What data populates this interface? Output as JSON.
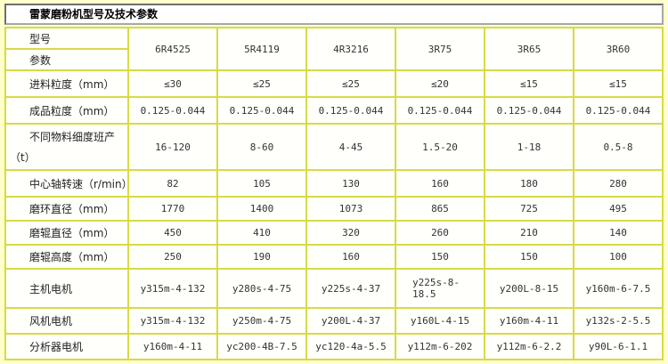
{
  "colors": {
    "page_bg": "#ffffcc",
    "cell_bg": "#fffffb",
    "grid": "#d8da45",
    "title_bg": "#ffffff",
    "title_border": "#6e6e6e",
    "text": "#333333"
  },
  "chart_data": {
    "type": "table",
    "title": "雷蒙磨粉机型号及技术参数",
    "corner": {
      "top": "型号",
      "bottom": "参数"
    },
    "columns": [
      "6R4525",
      "5R4119",
      "4R3216",
      "3R75",
      "3R65",
      "3R60"
    ],
    "rows": [
      {
        "label": "进料粒度（mm）",
        "values": [
          "≤30",
          "≤25",
          "≤25",
          "≤20",
          "≤15",
          "≤15"
        ]
      },
      {
        "label": "成品粒度（mm）",
        "values": [
          "0.125-0.044",
          "0.125-0.044",
          "0.125-0.044",
          "0.125-0.044",
          "0.125-0.044",
          "0.125-0.044"
        ]
      },
      {
        "label": "不同物料细度班产",
        "label2": "（t）",
        "values": [
          "16-120",
          "8-60",
          "4-45",
          "1.5-20",
          "1-18",
          "0.5-8"
        ]
      },
      {
        "label": "中心轴转速（r/min）",
        "values": [
          "82",
          "105",
          "130",
          "160",
          "180",
          "280"
        ]
      },
      {
        "label": "磨环直径（mm）",
        "values": [
          "1770",
          "1400",
          "1073",
          "865",
          "725",
          "495"
        ]
      },
      {
        "label": "磨辊直径（mm）",
        "values": [
          "450",
          "410",
          "320",
          "260",
          "210",
          "140"
        ]
      },
      {
        "label": "磨辊高度（mm）",
        "values": [
          "250",
          "190",
          "160",
          "150",
          "150",
          "100"
        ]
      },
      {
        "label": "主机电机",
        "values": [
          "y315m-4-132",
          "y280s-4-75",
          "y225s-4-37",
          "y225s-8-18.5",
          "y200L-8-15",
          "y160m-6-7.5"
        ]
      },
      {
        "label": "风机电机",
        "values": [
          "y315m-4-132",
          "y250m-4-75",
          "y200L-4-37",
          "y160L-4-15",
          "y160m-4-11",
          "y132s-2-5.5"
        ]
      },
      {
        "label": "分析器电机",
        "values": [
          "y160m-4-11",
          "yc200-4B-7.5",
          "yc120-4a-5.5",
          "y112m-6-202",
          "y112m-6-2.2",
          "y90L-6-1.1"
        ]
      }
    ]
  }
}
